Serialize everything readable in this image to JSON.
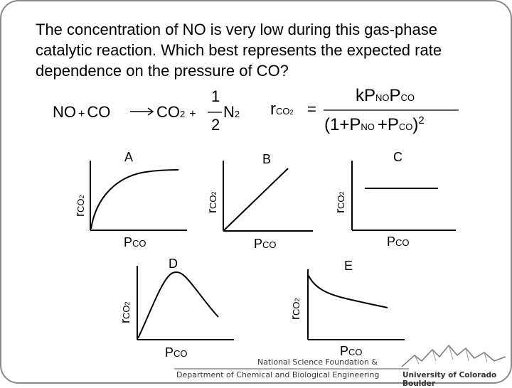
{
  "question": "The concentration of NO is very low during this gas-phase catalytic reaction. Which best represents the expected rate dependence on the pressure of CO?",
  "reaction": {
    "lhs1": "NO",
    "plus1": "+",
    "lhs2": "CO",
    "rhs1": "CO",
    "rhs1_sub": "2",
    "plus2": "+",
    "frac_num": "1",
    "frac_den": "2",
    "rhs2": "N",
    "rhs2_sub": "2"
  },
  "rate_law": {
    "r": "r",
    "r_sub": "CO",
    "r_sub2": "2",
    "equals": "=",
    "num_k": "kP",
    "num_sub1": "NO",
    "num_p2": "P",
    "num_sub2": "CO",
    "den_open": "(1+",
    "den_p1": "P",
    "den_sub1": "NO",
    "den_plus": "+P",
    "den_sub2": "CO",
    "den_close": ")",
    "den_exp": "2"
  },
  "plots": [
    {
      "label": "A",
      "shape": "saturating"
    },
    {
      "label": "B",
      "shape": "linear"
    },
    {
      "label": "C",
      "shape": "constant"
    },
    {
      "label": "D",
      "shape": "peak"
    },
    {
      "label": "E",
      "shape": "decaying"
    }
  ],
  "axes": {
    "x_main": "P",
    "x_sub": "CO",
    "y_main": "r",
    "y_sub": "CO",
    "y_sub2": "2"
  },
  "footer": {
    "nsf": "National Science Foundation &",
    "dept": "Department of Chemical and Biological Engineering",
    "univ": "University of Colorado Boulder"
  }
}
